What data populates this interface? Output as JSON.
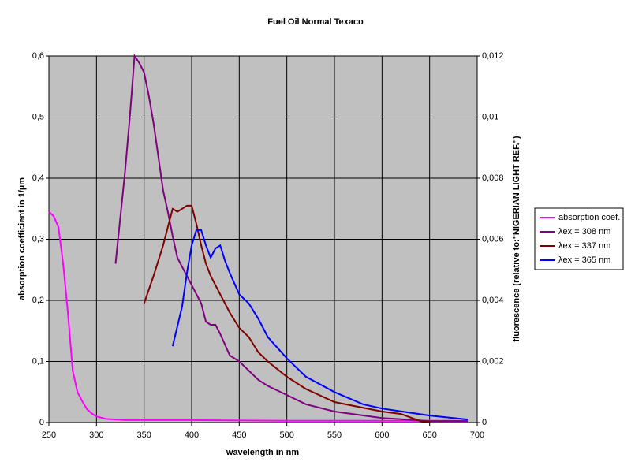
{
  "chart_data": {
    "type": "line",
    "title": "Fuel Oil Normal Texaco",
    "xlabel": "wavelength in nm",
    "ylabel": "absorption coefficient in 1/µm",
    "y2label": "fluorescence (relative to:\"NIGERIAN LIGHT REF.\")",
    "xlim": [
      250,
      700
    ],
    "xticks": [
      250,
      300,
      350,
      400,
      450,
      500,
      550,
      600,
      650,
      700
    ],
    "ylim": [
      0,
      0.6
    ],
    "yticks": [
      0,
      {
        "value": 0.1,
        "label": "0,1"
      },
      {
        "value": 0.2,
        "label": "0,2"
      },
      {
        "value": 0.3,
        "label": "0,3"
      },
      {
        "value": 0.4,
        "label": "0,4"
      },
      {
        "value": 0.5,
        "label": "0,5"
      },
      {
        "value": 0.6,
        "label": "0,6"
      }
    ],
    "y2lim": [
      0,
      0.012
    ],
    "y2ticks": [
      0,
      {
        "value": 0.002,
        "label": "0,002"
      },
      {
        "value": 0.004,
        "label": "0,004"
      },
      {
        "value": 0.006,
        "label": "0,006"
      },
      {
        "value": 0.008,
        "label": "0,008"
      },
      {
        "value": 0.01,
        "label": "0,01"
      },
      {
        "value": 0.012,
        "label": "0,012"
      }
    ],
    "grid": true,
    "legend": "right",
    "series": [
      {
        "name": "absorption coef.",
        "color": "#ff00ff",
        "axis": "y",
        "x": [
          250,
          255,
          260,
          265,
          270,
          275,
          280,
          285,
          290,
          295,
          300,
          310,
          320,
          330,
          350,
          400,
          500,
          600,
          690
        ],
        "values": [
          0.345,
          0.338,
          0.32,
          0.26,
          0.18,
          0.085,
          0.05,
          0.035,
          0.022,
          0.015,
          0.01,
          0.006,
          0.005,
          0.004,
          0.004,
          0.004,
          0.003,
          0.003,
          0.003
        ]
      },
      {
        "name": "λex = 308 nm",
        "color": "#800080",
        "axis": "y2",
        "x": [
          320,
          330,
          335,
          340,
          345,
          350,
          355,
          360,
          365,
          370,
          375,
          380,
          385,
          390,
          400,
          410,
          415,
          420,
          425,
          430,
          440,
          450,
          460,
          470,
          480,
          500,
          520,
          550,
          600,
          650,
          690
        ],
        "values": [
          0.0052,
          0.0082,
          0.01,
          0.012,
          0.01177,
          0.01146,
          0.0107,
          0.0098,
          0.0087,
          0.0076,
          0.0069,
          0.0061,
          0.0054,
          0.0051,
          0.0045,
          0.0039,
          0.0033,
          0.0032,
          0.0032,
          0.0029,
          0.0022,
          0.002,
          0.0017,
          0.0014,
          0.0012,
          0.0009,
          0.0006,
          0.00036,
          0.00015,
          5e-05,
          5e-05
        ]
      },
      {
        "name": "λex = 337 nm",
        "color": "#800000",
        "axis": "y2",
        "x": [
          350,
          360,
          370,
          380,
          385,
          390,
          395,
          400,
          405,
          410,
          415,
          420,
          430,
          440,
          450,
          460,
          470,
          480,
          500,
          520,
          550,
          600,
          620,
          640,
          650
        ],
        "values": [
          0.0039,
          0.0048,
          0.0058,
          0.007,
          0.0069,
          0.007,
          0.0071,
          0.0071,
          0.0065,
          0.0058,
          0.0052,
          0.0048,
          0.0042,
          0.0036,
          0.0031,
          0.0028,
          0.0023,
          0.002,
          0.0015,
          0.0011,
          0.00067,
          0.00036,
          0.00028,
          5e-05,
          2e-05
        ]
      },
      {
        "name": "λex = 365 nm",
        "color": "#0000ff",
        "axis": "y2",
        "x": [
          380,
          390,
          395,
          400,
          405,
          410,
          415,
          420,
          425,
          430,
          435,
          440,
          450,
          460,
          470,
          480,
          500,
          520,
          550,
          580,
          600,
          650,
          690
        ],
        "values": [
          0.0025,
          0.0038,
          0.0049,
          0.0058,
          0.0063,
          0.0063,
          0.0058,
          0.0054,
          0.0057,
          0.0058,
          0.0053,
          0.0049,
          0.0042,
          0.0039,
          0.0034,
          0.0028,
          0.0021,
          0.0015,
          0.001,
          0.0006,
          0.00046,
          0.00023,
          0.0001
        ]
      }
    ]
  }
}
